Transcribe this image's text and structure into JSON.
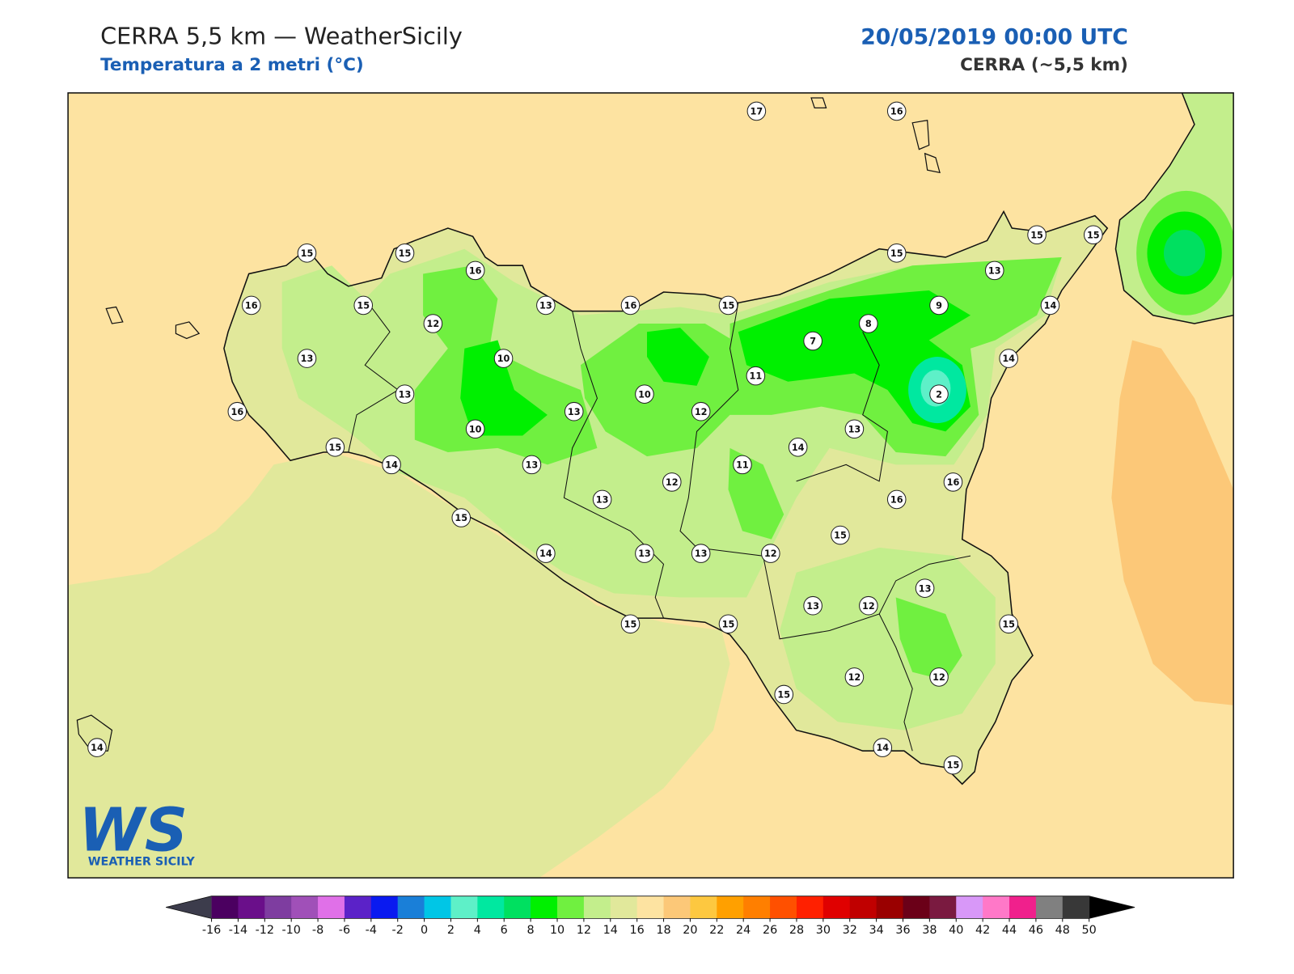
{
  "header": {
    "title": "CERRA 5,5 km — WeatherSicily",
    "subtitle": "Temperatura a 2 metri (°C)",
    "date": "20/05/2019 00:00 UTC",
    "model": "CERRA (~5,5 km)"
  },
  "stations": [
    17,
    16,
    15,
    15,
    16,
    16,
    15,
    13,
    16,
    15,
    15,
    15,
    15,
    13,
    14,
    9,
    8,
    7,
    12,
    10,
    13,
    14,
    11,
    13,
    10,
    13,
    12,
    2,
    16,
    10,
    13,
    15,
    14,
    14,
    13,
    11,
    12,
    16,
    16,
    13,
    15,
    15,
    14,
    13,
    13,
    12,
    13,
    13,
    12,
    15,
    15,
    15,
    12,
    12,
    15,
    14,
    14,
    15
  ],
  "colorbar": {
    "ticks": [
      -16,
      -14,
      -12,
      -10,
      -8,
      -6,
      -4,
      -2,
      0,
      2,
      4,
      6,
      8,
      10,
      12,
      14,
      16,
      18,
      20,
      22,
      24,
      26,
      28,
      30,
      32,
      34,
      36,
      38,
      40,
      42,
      44,
      46,
      48,
      50
    ],
    "colors": [
      "#4b0060",
      "#6a0f8a",
      "#7e3da0",
      "#a050b8",
      "#e070e8",
      "#5b22c8",
      "#0a1af0",
      "#1a7fd8",
      "#00c6e6",
      "#5ef0c8",
      "#00e8a0",
      "#00e060",
      "#00f000",
      "#70f040",
      "#c3ee8c",
      "#e1e89b",
      "#fde3a1",
      "#fcc878",
      "#fdc840",
      "#ffa000",
      "#ff7f00",
      "#ff5000",
      "#ff2000",
      "#e00000",
      "#c00000",
      "#9a0000",
      "#6b0018",
      "#7a1a40",
      "#d898f8",
      "#ff78c8",
      "#f0208c",
      "#808080",
      "#383838"
    ],
    "under": "#3c3c4c",
    "over": "#000000"
  },
  "logo": {
    "mark": "WS",
    "name": "WEATHER SICILY"
  }
}
